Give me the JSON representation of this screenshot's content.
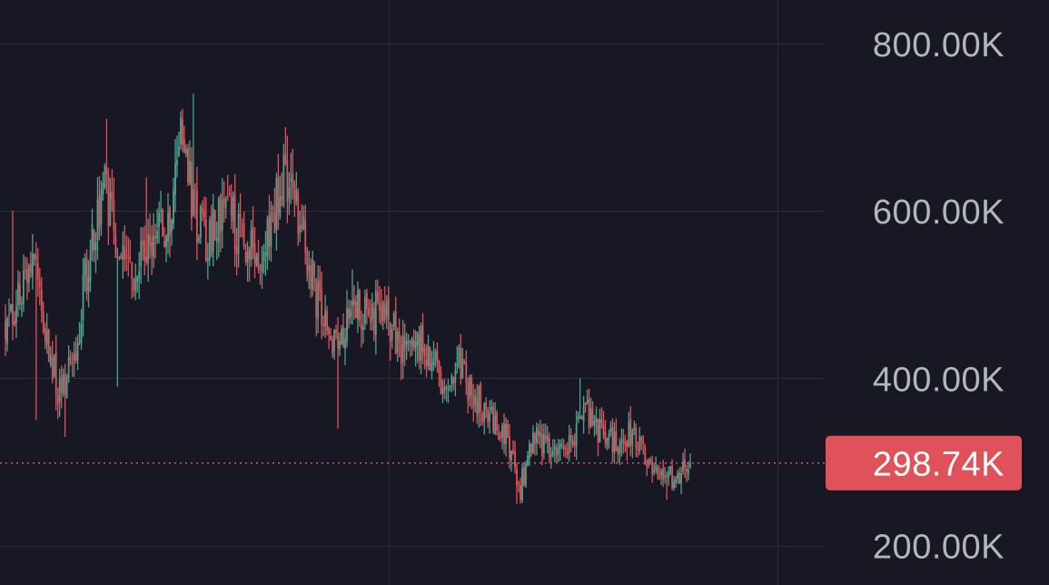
{
  "colors": {
    "background": "#171824",
    "grid": "#2b2d3a",
    "up": "#4ea18c",
    "down": "#e0525a",
    "price_line": "#e0525a",
    "tick_text": "#b4b6bd",
    "price_badge": "#e0525a",
    "price_badge_text": "#ffffff"
  },
  "chart_data": {
    "type": "candlestick",
    "title": "",
    "xlabel": "",
    "ylabel": "",
    "ylim": [
      153000,
      852000
    ],
    "y_ticks": [
      {
        "value": 800000,
        "label": "800.00K"
      },
      {
        "value": 600000,
        "label": "600.00K"
      },
      {
        "value": 400000,
        "label": "400.00K"
      },
      {
        "value": 200000,
        "label": "200.00K"
      }
    ],
    "grid": true,
    "vertical_grid_count": 2,
    "last_price": {
      "value": 298740,
      "label": "298.74K"
    },
    "candle_count": 380,
    "close_path": [
      [
        0,
        470000
      ],
      [
        8,
        500000
      ],
      [
        15,
        545000
      ],
      [
        22,
        450000
      ],
      [
        30,
        380000
      ],
      [
        38,
        420000
      ],
      [
        45,
        530000
      ],
      [
        55,
        630000
      ],
      [
        62,
        560000
      ],
      [
        72,
        530000
      ],
      [
        80,
        570000
      ],
      [
        90,
        580000
      ],
      [
        97,
        680000
      ],
      [
        105,
        600000
      ],
      [
        112,
        555000
      ],
      [
        120,
        610000
      ],
      [
        130,
        570000
      ],
      [
        137,
        560000
      ],
      [
        145,
        560000
      ],
      [
        152,
        630000
      ],
      [
        158,
        640000
      ],
      [
        166,
        560000
      ],
      [
        172,
        500000
      ],
      [
        178,
        455000
      ],
      [
        185,
        440000
      ],
      [
        192,
        505000
      ],
      [
        198,
        470000
      ],
      [
        205,
        480000
      ],
      [
        212,
        470000
      ],
      [
        220,
        430000
      ],
      [
        228,
        445000
      ],
      [
        238,
        410000
      ],
      [
        245,
        390000
      ],
      [
        252,
        420000
      ],
      [
        258,
        380000
      ],
      [
        266,
        360000
      ],
      [
        274,
        340000
      ],
      [
        280,
        315000
      ],
      [
        285,
        270000
      ],
      [
        292,
        325000
      ],
      [
        300,
        320000
      ],
      [
        308,
        310000
      ],
      [
        315,
        330000
      ],
      [
        322,
        360000
      ],
      [
        330,
        330000
      ],
      [
        337,
        320000
      ],
      [
        344,
        335000
      ],
      [
        350,
        325000
      ],
      [
        357,
        300000
      ],
      [
        363,
        275000
      ],
      [
        370,
        285000
      ],
      [
        379,
        298740
      ]
    ],
    "spikes": [
      {
        "i": 4,
        "v": 600000
      },
      {
        "i": 17,
        "v": 350000
      },
      {
        "i": 33,
        "v": 330000
      },
      {
        "i": 56,
        "v": 710000
      },
      {
        "i": 62,
        "v": 390000
      },
      {
        "i": 78,
        "v": 640000
      },
      {
        "i": 95,
        "v": 690000
      },
      {
        "i": 104,
        "v": 740000
      },
      {
        "i": 125,
        "v": 610000
      },
      {
        "i": 155,
        "v": 700000
      },
      {
        "i": 172,
        "v": 450000
      },
      {
        "i": 184,
        "v": 340000
      },
      {
        "i": 192,
        "v": 530000
      },
      {
        "i": 250,
        "v": 430000
      },
      {
        "i": 283,
        "v": 250000
      },
      {
        "i": 318,
        "v": 400000
      },
      {
        "i": 345,
        "v": 360000
      },
      {
        "i": 366,
        "v": 255000
      }
    ]
  }
}
